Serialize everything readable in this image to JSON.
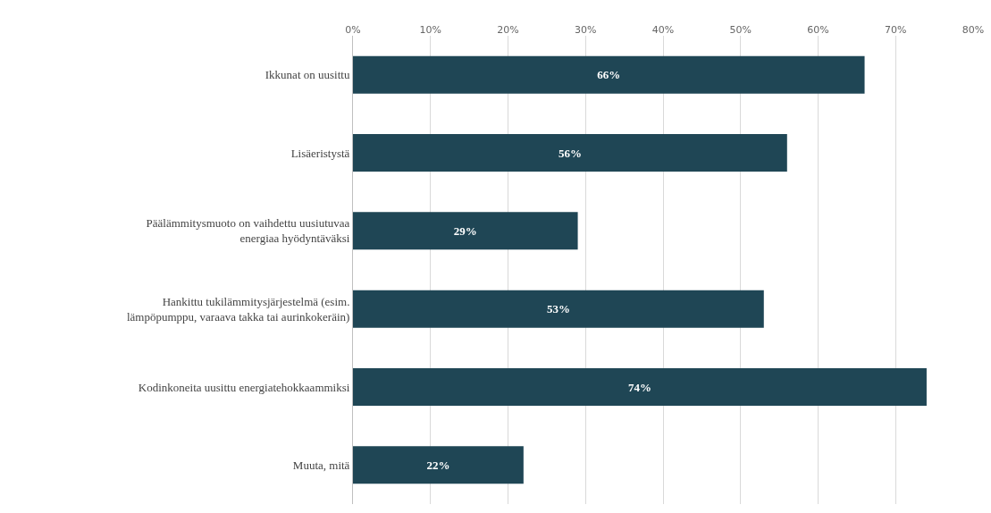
{
  "chart_data": {
    "type": "bar",
    "orientation": "horizontal",
    "categories": [
      "Ikkunat on uusittu",
      "Lisäeristystä",
      "Päälämmitysmuoto on vaihdettu uusiutuvaa energiaa hyödyntäväksi",
      "Hankittu tukilämmitysjärjestelmä (esim. lämpöpumppu, varaava takka tai aurinkokeräin)",
      "Kodinkoneita uusittu energiatehokkaammiksi",
      "Muuta, mitä"
    ],
    "values": [
      66,
      56,
      29,
      53,
      74,
      22
    ],
    "value_labels": [
      "66%",
      "56%",
      "29%",
      "53%",
      "74%",
      "22%"
    ],
    "color": "#1f4655",
    "xlim": [
      0,
      80
    ],
    "xticks": [
      {
        "value": 0,
        "label": "0%"
      },
      {
        "value": 10,
        "label": "10%"
      },
      {
        "value": 20,
        "label": "20%"
      },
      {
        "value": 30,
        "label": "30%"
      },
      {
        "value": 40,
        "label": "40%"
      },
      {
        "value": 50,
        "label": "50%"
      },
      {
        "value": 60,
        "label": "60%"
      },
      {
        "value": 70,
        "label": "70%"
      },
      {
        "value": 80,
        "label": "80%"
      }
    ],
    "grid": "x"
  }
}
